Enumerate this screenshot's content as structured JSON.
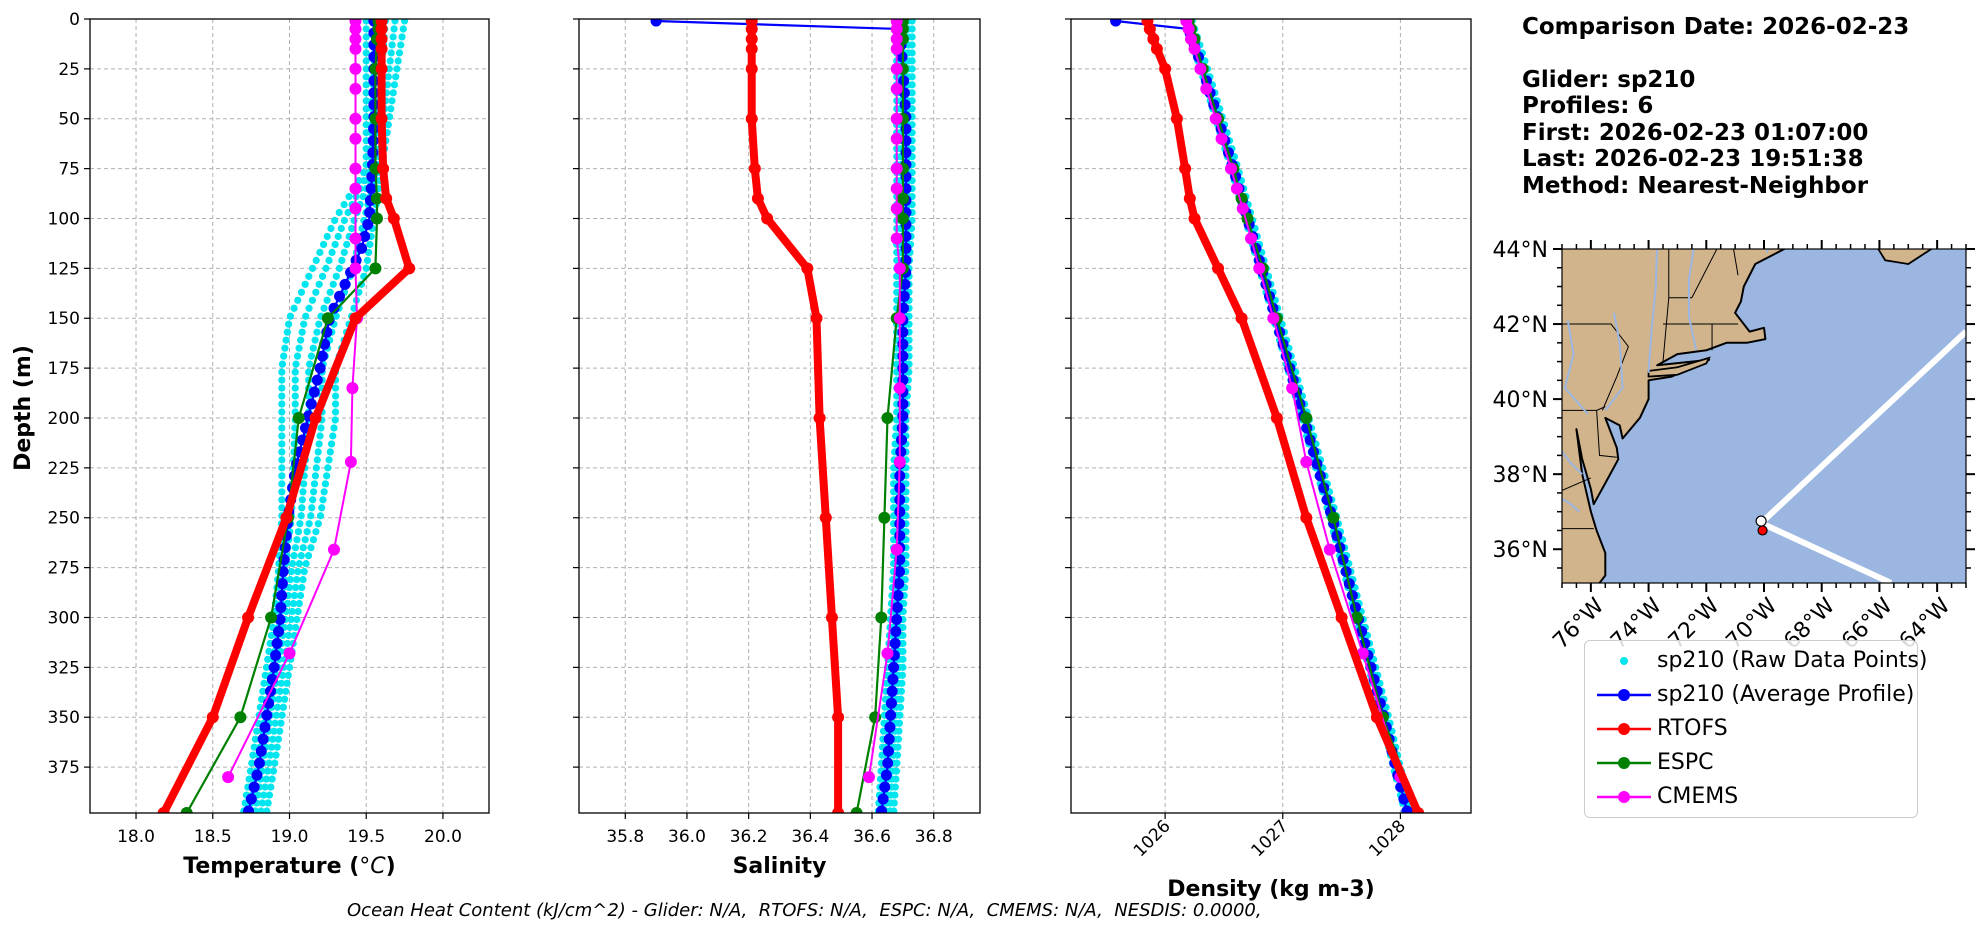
{
  "info": {
    "comparison_date": "Comparison Date: 2026-02-23",
    "glider": "Glider: sp210",
    "profiles": "Profiles: 6",
    "first": "First: 2026-02-23 01:07:00",
    "last": "Last: 2026-02-23 19:51:38",
    "method": "Method: Nearest-Neighbor"
  },
  "footer": "Ocean Heat Content (kJ/cm^2) - Glider: N/A,  RTOFS: N/A,  ESPC: N/A,  CMEMS: N/A,  NESDIS: 0.0000,",
  "colors": {
    "raw": "#00e5ee",
    "glider": "#0000ff",
    "rtofs": "#ff0000",
    "espc": "#008000",
    "cmems": "#ff00ff",
    "land": "#d2b48c",
    "ocean": "#9bb7e1"
  },
  "legend": [
    {
      "label": "sp210 (Raw Data Points)",
      "key": "raw",
      "style": "dot"
    },
    {
      "label": "sp210 (Average Profile)",
      "key": "glider",
      "style": "line"
    },
    {
      "label": "RTOFS",
      "key": "rtofs",
      "style": "line"
    },
    {
      "label": "ESPC",
      "key": "espc",
      "style": "line"
    },
    {
      "label": "CMEMS",
      "key": "cmems",
      "style": "line"
    }
  ],
  "chart_data": [
    {
      "type": "line",
      "id": "temperature",
      "xlabel": "Temperature (°C)",
      "ylabel": "Depth (m)",
      "xlim": [
        17.7,
        20.3
      ],
      "ylim": [
        398,
        0
      ],
      "xticks": [
        18.0,
        18.5,
        19.0,
        19.5,
        20.0
      ],
      "xtick_labels": [
        "18.0",
        "18.5",
        "19.0",
        "19.5",
        "20.0"
      ],
      "yticks": [
        0,
        25,
        50,
        75,
        100,
        125,
        150,
        175,
        200,
        225,
        250,
        275,
        300,
        325,
        350,
        375
      ],
      "grid": true,
      "series": [
        {
          "name": "RTOFS",
          "depth": [
            1,
            5,
            10,
            15,
            25,
            50,
            75,
            90,
            100,
            125,
            150,
            200,
            250,
            300,
            350,
            398
          ],
          "values": [
            19.6,
            19.6,
            19.6,
            19.6,
            19.6,
            19.6,
            19.61,
            19.63,
            19.68,
            19.78,
            19.43,
            19.17,
            18.98,
            18.73,
            18.5,
            18.18
          ]
        },
        {
          "name": "ESPC",
          "depth": [
            1,
            5,
            10,
            25,
            50,
            75,
            90,
            100,
            125,
            150,
            200,
            250,
            300,
            350,
            398
          ],
          "values": [
            19.58,
            19.58,
            19.57,
            19.56,
            19.56,
            19.56,
            19.57,
            19.57,
            19.56,
            19.25,
            19.06,
            18.99,
            18.88,
            18.68,
            18.33
          ]
        },
        {
          "name": "CMEMS",
          "depth": [
            1,
            5,
            10,
            15,
            25,
            35,
            50,
            60,
            75,
            85,
            95,
            110,
            125,
            150,
            185,
            222,
            266,
            318,
            380
          ],
          "values": [
            19.43,
            19.43,
            19.43,
            19.43,
            19.43,
            19.43,
            19.43,
            19.43,
            19.43,
            19.43,
            19.43,
            19.43,
            19.43,
            19.44,
            19.41,
            19.4,
            19.29,
            19.0,
            18.6
          ]
        },
        {
          "name": "sp210 (Average Profile)",
          "depth": [
            1,
            25,
            50,
            75,
            100,
            115,
            130,
            150,
            175,
            200,
            225,
            250,
            275,
            300,
            325,
            350,
            375,
            398
          ],
          "values": [
            19.55,
            19.55,
            19.55,
            19.54,
            19.52,
            19.47,
            19.38,
            19.26,
            19.2,
            19.12,
            19.04,
            18.99,
            18.96,
            18.94,
            18.9,
            18.85,
            18.8,
            18.73
          ]
        }
      ],
      "raw_points": {
        "name": "sp210 (Raw Data Points)",
        "depth": [
          1,
          25,
          50,
          75,
          100,
          125,
          150,
          175,
          200,
          225,
          250,
          275,
          300,
          325,
          350,
          375,
          398
        ],
        "min": [
          19.5,
          19.5,
          19.5,
          19.5,
          19.3,
          19.15,
          19.0,
          18.95,
          18.95,
          18.95,
          18.95,
          18.93,
          18.9,
          18.85,
          18.8,
          18.75,
          18.7
        ],
        "max": [
          19.75,
          19.7,
          19.65,
          19.6,
          19.55,
          19.5,
          19.4,
          19.3,
          19.3,
          19.25,
          19.2,
          19.1,
          19.05,
          19.0,
          18.95,
          18.9,
          18.85
        ]
      }
    },
    {
      "type": "line",
      "id": "salinity",
      "xlabel": "Salinity",
      "xlim": [
        35.65,
        36.95
      ],
      "ylim": [
        398,
        0
      ],
      "xticks": [
        35.8,
        36.0,
        36.2,
        36.4,
        36.6,
        36.8
      ],
      "xtick_labels": [
        "35.8",
        "36.0",
        "36.2",
        "36.4",
        "36.6",
        "36.8"
      ],
      "grid": true,
      "series": [
        {
          "name": "RTOFS",
          "depth": [
            1,
            5,
            10,
            15,
            25,
            50,
            75,
            90,
            100,
            125,
            150,
            200,
            250,
            300,
            350,
            398
          ],
          "values": [
            36.21,
            36.21,
            36.21,
            36.21,
            36.21,
            36.21,
            36.22,
            36.23,
            36.26,
            36.39,
            36.42,
            36.43,
            36.45,
            36.47,
            36.49,
            36.49
          ]
        },
        {
          "name": "ESPC",
          "depth": [
            1,
            5,
            10,
            25,
            50,
            75,
            90,
            100,
            125,
            150,
            200,
            250,
            300,
            350,
            398
          ],
          "values": [
            36.7,
            36.7,
            36.7,
            36.7,
            36.7,
            36.7,
            36.7,
            36.7,
            36.7,
            36.68,
            36.65,
            36.64,
            36.63,
            36.61,
            36.55
          ]
        },
        {
          "name": "CMEMS",
          "depth": [
            1,
            5,
            10,
            15,
            25,
            35,
            50,
            60,
            75,
            85,
            95,
            110,
            125,
            150,
            185,
            222,
            266,
            318,
            380
          ],
          "values": [
            36.68,
            36.68,
            36.68,
            36.68,
            36.68,
            36.68,
            36.68,
            36.68,
            36.68,
            36.68,
            36.68,
            36.68,
            36.69,
            36.69,
            36.69,
            36.69,
            36.68,
            36.65,
            36.59
          ]
        },
        {
          "name": "sp210 (Average Profile)",
          "depth": [
            1,
            5,
            25,
            50,
            75,
            100,
            125,
            150,
            175,
            200,
            225,
            250,
            275,
            300,
            325,
            350,
            375,
            398
          ],
          "values": [
            35.9,
            36.69,
            36.7,
            36.71,
            36.71,
            36.71,
            36.71,
            36.7,
            36.7,
            36.7,
            36.69,
            36.69,
            36.69,
            36.68,
            36.67,
            36.66,
            36.65,
            36.63
          ]
        }
      ],
      "raw_points": {
        "name": "sp210 (Raw Data Points)",
        "depth": [
          1,
          25,
          50,
          75,
          100,
          125,
          150,
          175,
          200,
          225,
          250,
          275,
          300,
          325,
          350,
          375,
          398
        ],
        "min": [
          36.68,
          36.68,
          36.68,
          36.68,
          36.68,
          36.68,
          36.68,
          36.68,
          36.68,
          36.67,
          36.67,
          36.67,
          36.66,
          36.65,
          36.64,
          36.63,
          36.62
        ],
        "max": [
          36.73,
          36.73,
          36.73,
          36.73,
          36.73,
          36.72,
          36.72,
          36.72,
          36.71,
          36.71,
          36.71,
          36.71,
          36.7,
          36.7,
          36.69,
          36.68,
          36.67
        ]
      }
    },
    {
      "type": "line",
      "id": "density",
      "xlabel": "Density (kg m-3)",
      "xlim": [
        1025.2,
        1028.6
      ],
      "ylim": [
        398,
        0
      ],
      "xticks": [
        1026,
        1027,
        1028
      ],
      "xtick_labels": [
        "1026",
        "1027",
        "1028"
      ],
      "grid": true,
      "series": [
        {
          "name": "RTOFS",
          "depth": [
            1,
            5,
            10,
            15,
            25,
            50,
            75,
            90,
            100,
            125,
            150,
            200,
            250,
            300,
            350,
            398
          ],
          "values": [
            1025.85,
            1025.87,
            1025.9,
            1025.93,
            1026.0,
            1026.1,
            1026.17,
            1026.21,
            1026.25,
            1026.45,
            1026.65,
            1026.95,
            1027.2,
            1027.5,
            1027.8,
            1028.15
          ]
        },
        {
          "name": "ESPC",
          "depth": [
            1,
            5,
            10,
            25,
            50,
            75,
            90,
            100,
            125,
            150,
            200,
            250,
            300,
            350,
            398
          ],
          "values": [
            1026.2,
            1026.22,
            1026.25,
            1026.32,
            1026.45,
            1026.58,
            1026.65,
            1026.7,
            1026.83,
            1026.95,
            1027.2,
            1027.43,
            1027.63,
            1027.85,
            1028.15
          ]
        },
        {
          "name": "CMEMS",
          "depth": [
            1,
            5,
            10,
            15,
            25,
            35,
            50,
            60,
            75,
            85,
            95,
            110,
            125,
            150,
            185,
            222,
            266,
            318,
            380
          ],
          "values": [
            1026.18,
            1026.2,
            1026.22,
            1026.25,
            1026.3,
            1026.35,
            1026.43,
            1026.48,
            1026.56,
            1026.61,
            1026.66,
            1026.73,
            1026.8,
            1026.92,
            1027.08,
            1027.2,
            1027.4,
            1027.68,
            1028.0
          ]
        },
        {
          "name": "sp210 (Average Profile)",
          "depth": [
            1,
            5,
            25,
            50,
            75,
            100,
            125,
            150,
            175,
            200,
            225,
            250,
            275,
            300,
            325,
            350,
            375,
            398
          ],
          "values": [
            1025.58,
            1026.2,
            1026.32,
            1026.45,
            1026.58,
            1026.7,
            1026.82,
            1026.94,
            1027.06,
            1027.18,
            1027.3,
            1027.42,
            1027.53,
            1027.64,
            1027.75,
            1027.86,
            1027.96,
            1028.06
          ]
        }
      ],
      "raw_points": {
        "name": "sp210 (Raw Data Points)",
        "depth": [
          1,
          25,
          50,
          75,
          100,
          125,
          150,
          175,
          200,
          225,
          250,
          275,
          300,
          325,
          350,
          375,
          398
        ],
        "min": [
          1026.17,
          1026.3,
          1026.43,
          1026.56,
          1026.68,
          1026.8,
          1026.92,
          1027.04,
          1027.16,
          1027.28,
          1027.4,
          1027.51,
          1027.62,
          1027.73,
          1027.84,
          1027.94,
          1028.04
        ],
        "max": [
          1026.23,
          1026.36,
          1026.49,
          1026.62,
          1026.74,
          1026.86,
          1026.98,
          1027.1,
          1027.22,
          1027.34,
          1027.46,
          1027.57,
          1027.68,
          1027.79,
          1027.9,
          1028.0,
          1028.1
        ]
      }
    },
    {
      "type": "map",
      "id": "track-map",
      "lon_range": [
        -77.0,
        -63.0
      ],
      "lat_range": [
        35.1,
        44.0
      ],
      "lon_ticks": [
        -76,
        -74,
        -72,
        -70,
        -68,
        -66,
        -64
      ],
      "lon_tick_labels": [
        "76°W",
        "74°W",
        "72°W",
        "70°W",
        "68°W",
        "66°W",
        "64°W"
      ],
      "lat_ticks": [
        36,
        38,
        40,
        42,
        44
      ],
      "lat_tick_labels": [
        "36°N",
        "38°N",
        "40°N",
        "42°N",
        "44°N"
      ],
      "glider_track": [
        [
          -63.0,
          41.8
        ],
        [
          -70.1,
          36.7
        ],
        [
          -65.6,
          35.1
        ]
      ],
      "glider_position": [
        -70.1,
        36.75
      ],
      "model_position": [
        -70.05,
        36.5
      ]
    }
  ]
}
